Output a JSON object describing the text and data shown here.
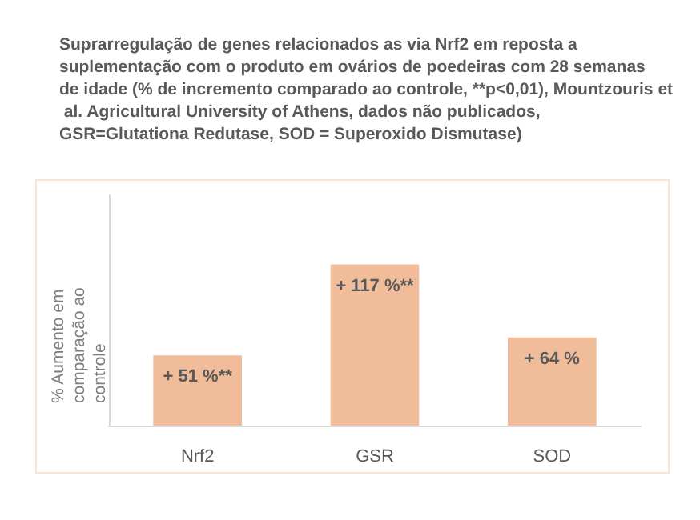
{
  "chart_data": {
    "type": "bar",
    "title": "Suprarregulação de genes relacionados as via Nrf2 em reposta a suplementação com o produto em ovários de poedeiras com 28 semanas de idade (% de incremento comparado ao controle, **p<0,01), Mountzouris et al. Agricultural University of Athens, dados não publicados, GSR=Glutationa Redutase, SOD = Superoxido Dismutase)",
    "ylabel": "% Aumento em comparação ao controle",
    "categories": [
      "Nrf2",
      "GSR",
      "SOD"
    ],
    "values": [
      51,
      117,
      64
    ],
    "value_labels": [
      "+ 51 %**",
      "+ 117 %**",
      "+ 64 %"
    ],
    "color": "#f0bc9a",
    "grid": false
  }
}
